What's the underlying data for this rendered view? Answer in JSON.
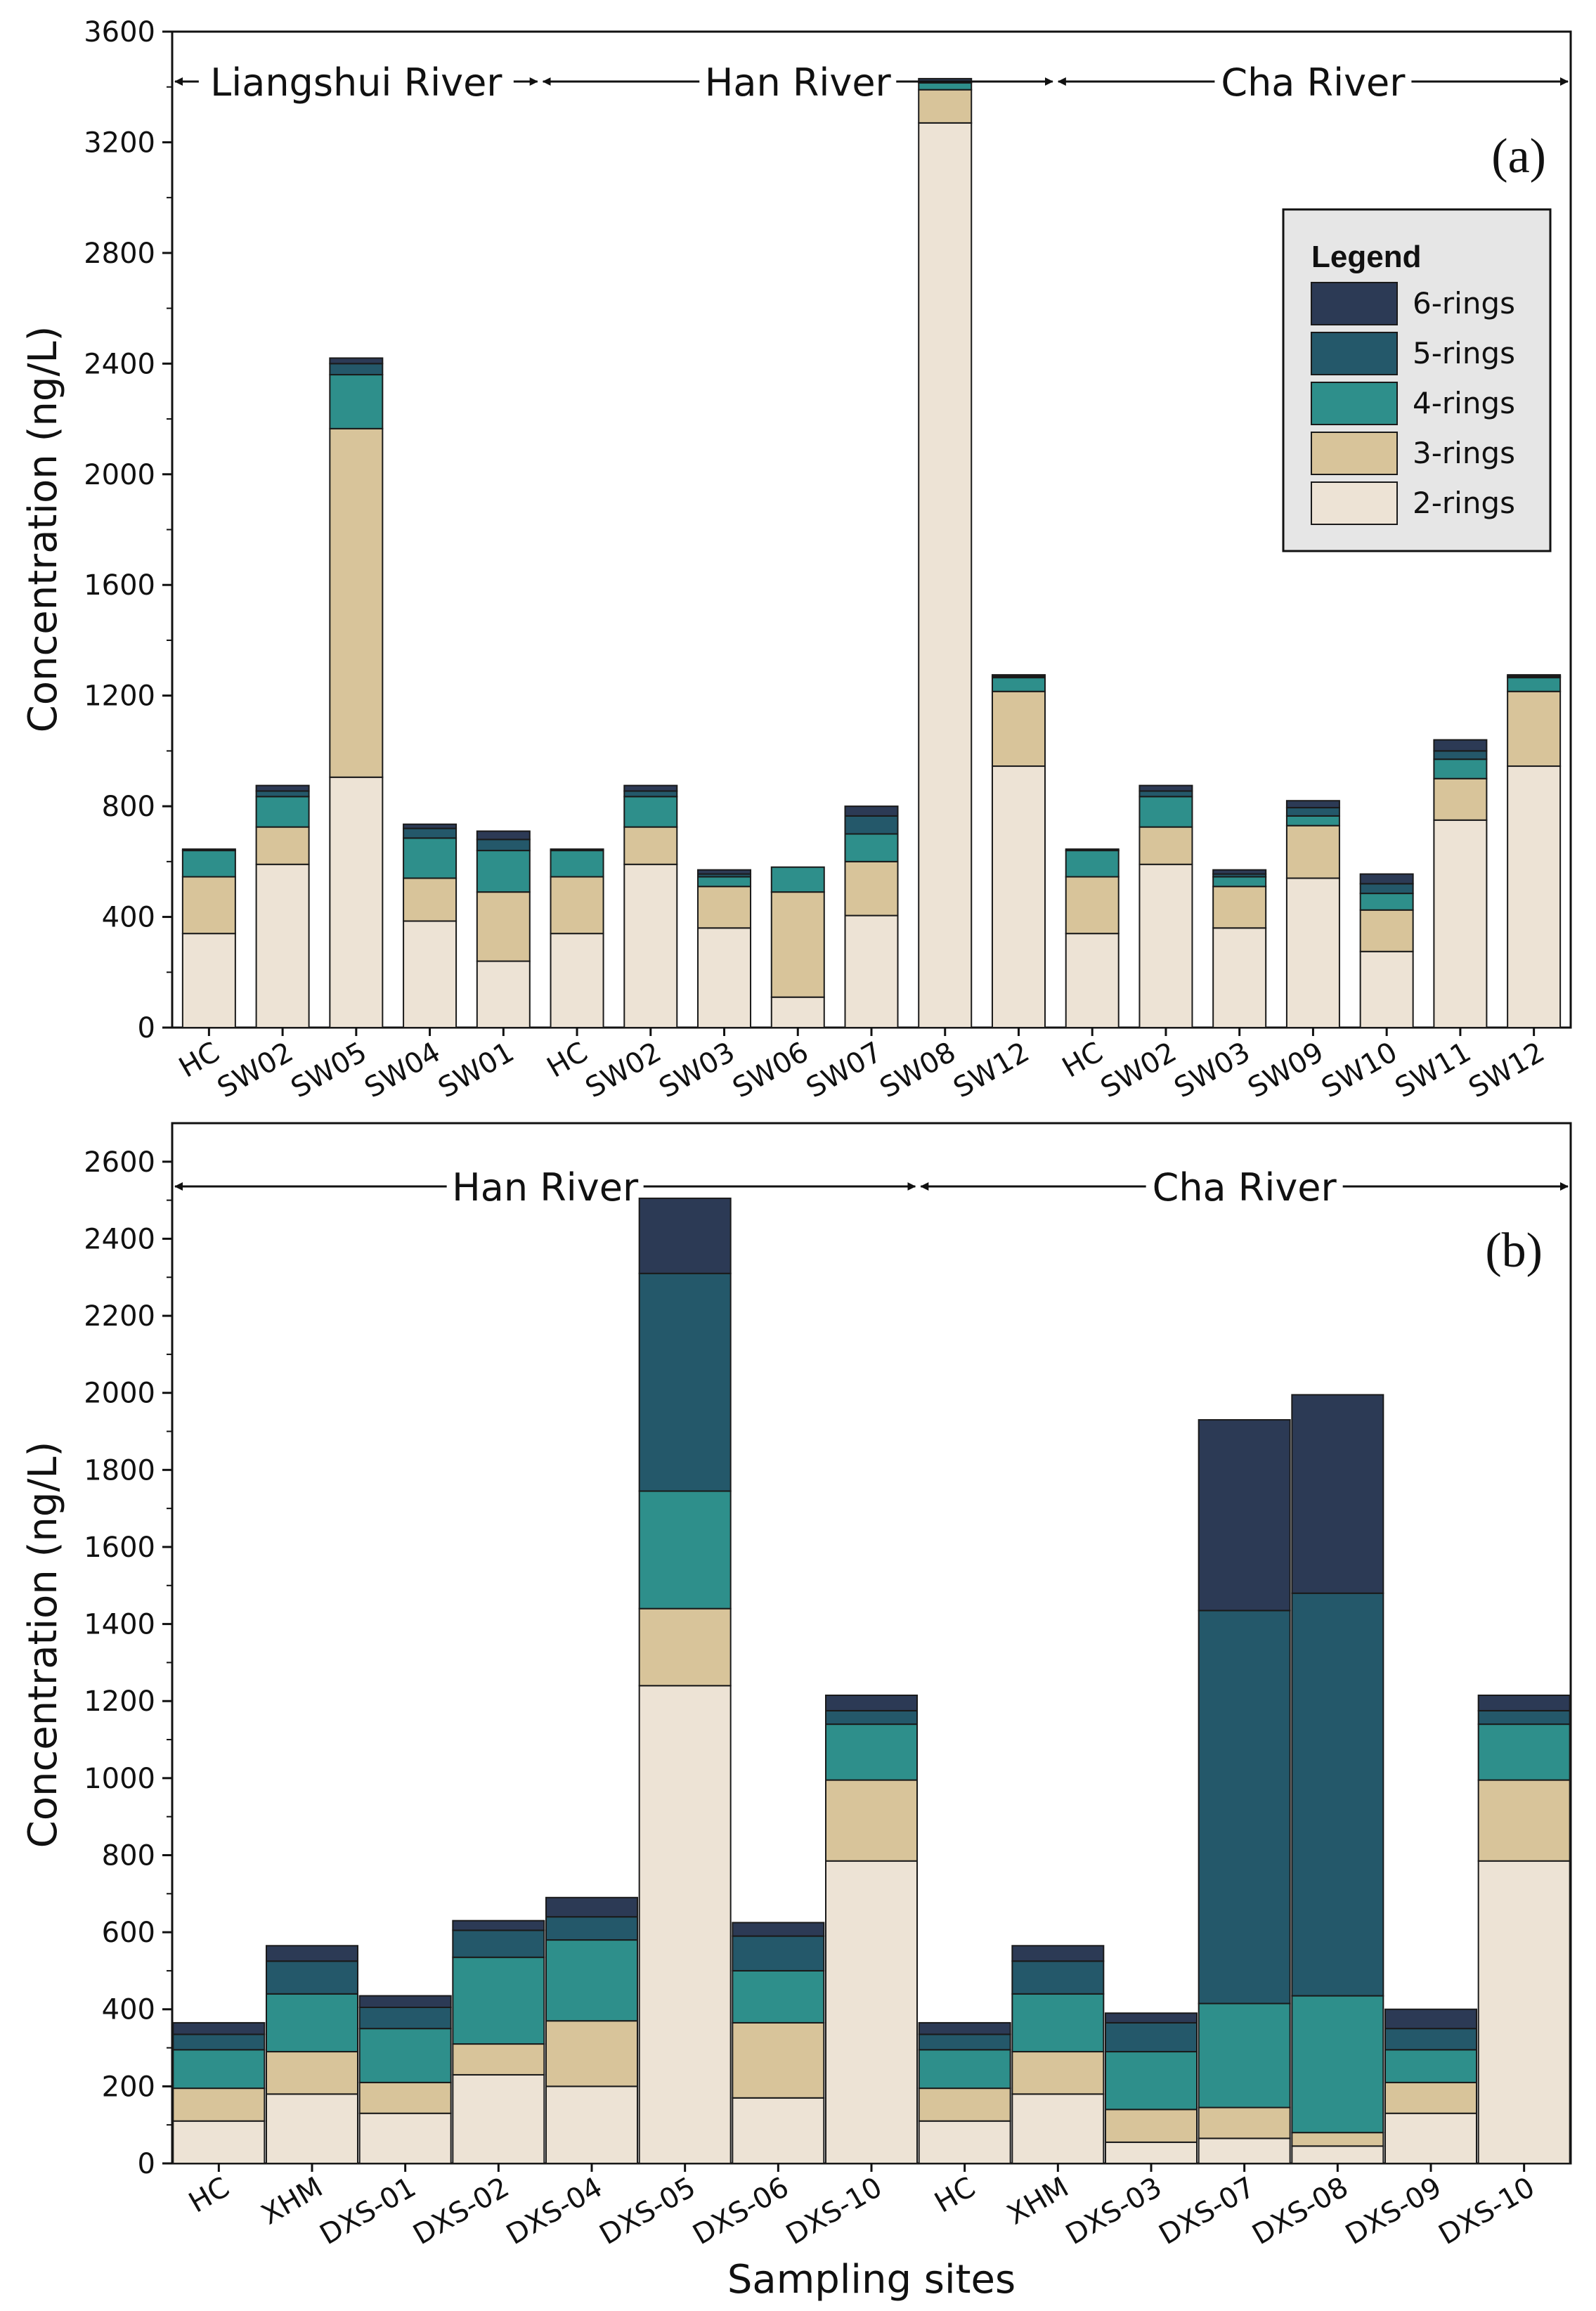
{
  "colors": {
    "6-rings": "#2c3a55",
    "5-rings": "#24586a",
    "4-rings": "#2e8f8b",
    "3-rings": "#d8c49a",
    "2-rings": "#ede3d5"
  },
  "legend": {
    "title": "Legend",
    "items": [
      "6-rings",
      "5-rings",
      "4-rings",
      "3-rings",
      "2-rings"
    ]
  },
  "chart_data": [
    {
      "type": "bar",
      "stacked": true,
      "panel": "(a)",
      "ylabel": "Concentration (ng/L)",
      "xlabel": "",
      "ylim": [
        0,
        3600
      ],
      "yticks": [
        0,
        400,
        800,
        1200,
        1600,
        2000,
        2400,
        2800,
        3200,
        3600
      ],
      "categories": [
        "HC",
        "SW02",
        "SW05",
        "SW04",
        "SW01",
        "HC",
        "SW02",
        "SW03",
        "SW06",
        "SW07",
        "SW08",
        "SW12",
        "HC",
        "SW02",
        "SW03",
        "SW09",
        "SW10",
        "SW11",
        "SW12"
      ],
      "rivers": [
        {
          "name": "Liangshui River",
          "from": 0,
          "to": 5
        },
        {
          "name": "Han River",
          "from": 5,
          "to": 12
        },
        {
          "name": "Cha River",
          "from": 12,
          "to": 19
        }
      ],
      "series": [
        {
          "name": "2-rings",
          "values": [
            340,
            590,
            905,
            385,
            240,
            340,
            590,
            360,
            110,
            405,
            3270,
            945,
            340,
            590,
            360,
            540,
            275,
            750,
            945
          ]
        },
        {
          "name": "3-rings",
          "values": [
            205,
            135,
            1260,
            155,
            250,
            205,
            135,
            150,
            380,
            195,
            120,
            270,
            205,
            135,
            150,
            190,
            150,
            150,
            270
          ]
        },
        {
          "name": "4-rings",
          "values": [
            95,
            110,
            195,
            145,
            150,
            95,
            110,
            35,
            90,
            100,
            25,
            50,
            95,
            110,
            35,
            35,
            60,
            70,
            50
          ]
        },
        {
          "name": "5-rings",
          "values": [
            0,
            20,
            40,
            35,
            40,
            0,
            20,
            10,
            0,
            65,
            5,
            5,
            0,
            20,
            10,
            30,
            35,
            30,
            5
          ]
        },
        {
          "name": "6-rings",
          "values": [
            5,
            20,
            20,
            15,
            30,
            5,
            20,
            15,
            0,
            35,
            10,
            5,
            5,
            20,
            15,
            25,
            35,
            40,
            5
          ]
        }
      ]
    },
    {
      "type": "bar",
      "stacked": true,
      "panel": "(b)",
      "ylabel": "Concentration (ng/L)",
      "xlabel": "Sampling sites",
      "ylim": [
        0,
        2700
      ],
      "yticks": [
        0,
        200,
        400,
        600,
        800,
        1000,
        1200,
        1400,
        1600,
        1800,
        2000,
        2200,
        2400,
        2600
      ],
      "categories": [
        "HC",
        "XHM",
        "DXS-01",
        "DXS-02",
        "DXS-04",
        "DXS-05",
        "DXS-06",
        "DXS-10",
        "HC",
        "XHM",
        "DXS-03",
        "DXS-07",
        "DXS-08",
        "DXS-09",
        "DXS-10"
      ],
      "rivers": [
        {
          "name": "Han River",
          "from": 0,
          "to": 8
        },
        {
          "name": "Cha River",
          "from": 8,
          "to": 15
        }
      ],
      "series": [
        {
          "name": "2-rings",
          "values": [
            110,
            180,
            130,
            230,
            200,
            1240,
            170,
            785,
            110,
            180,
            55,
            65,
            45,
            130,
            785
          ]
        },
        {
          "name": "3-rings",
          "values": [
            85,
            110,
            80,
            80,
            170,
            200,
            195,
            210,
            85,
            110,
            85,
            80,
            35,
            80,
            210
          ]
        },
        {
          "name": "4-rings",
          "values": [
            100,
            150,
            140,
            225,
            210,
            305,
            135,
            145,
            100,
            150,
            150,
            270,
            355,
            85,
            145
          ]
        },
        {
          "name": "5-rings",
          "values": [
            40,
            85,
            55,
            70,
            60,
            565,
            90,
            35,
            40,
            85,
            75,
            1020,
            1045,
            55,
            35
          ]
        },
        {
          "name": "6-rings",
          "values": [
            30,
            40,
            30,
            25,
            50,
            195,
            35,
            40,
            30,
            40,
            25,
            495,
            515,
            50,
            40
          ]
        }
      ]
    }
  ]
}
